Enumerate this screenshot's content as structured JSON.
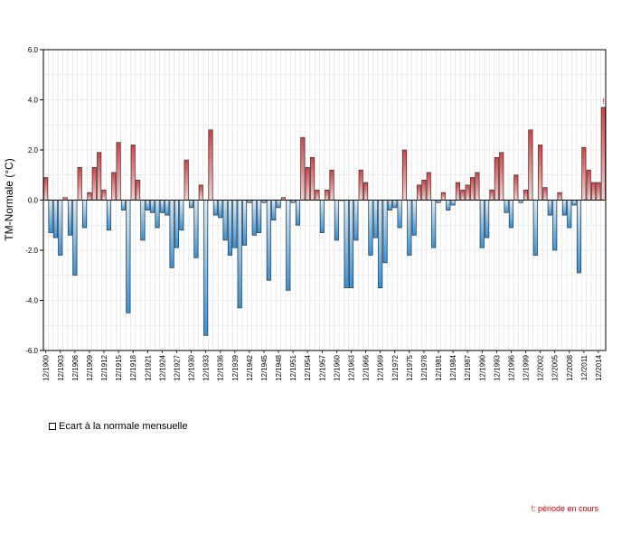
{
  "chart_data": {
    "type": "bar",
    "title": "",
    "ylabel": "TM-Normale (°C)",
    "xlabel": "",
    "ylim": [
      -6.0,
      6.0
    ],
    "yticks": [
      "6.0",
      "4.0",
      "2.0",
      "0.0",
      "-2.0",
      "-4.0",
      "-6.0"
    ],
    "ytick_values": [
      6,
      4,
      2,
      0,
      -2,
      -4,
      -6
    ],
    "grid": true,
    "legend_position": "bottom-left",
    "colors": {
      "positive": "#d94040",
      "positive_light": "#fbd0d0",
      "negative": "#2f93e0",
      "negative_light": "#d6efff"
    },
    "x_tick_labels": [
      "12/1900",
      "12/1903",
      "12/1906",
      "12/1909",
      "12/1912",
      "12/1915",
      "12/1918",
      "12/1921",
      "12/1924",
      "12/1927",
      "12/1930",
      "12/1933",
      "12/1936",
      "12/1939",
      "12/1942",
      "12/1945",
      "12/1948",
      "12/1951",
      "12/1954",
      "12/1957",
      "12/1960",
      "12/1963",
      "12/1966",
      "12/1969",
      "12/1972",
      "12/1975",
      "12/1978",
      "12/1981",
      "12/1984",
      "12/1987",
      "12/1990",
      "12/1993",
      "12/1996",
      "12/1999",
      "12/2002",
      "12/2005",
      "12/2008",
      "12/2011",
      "12/2014"
    ],
    "values": [
      0.9,
      -1.3,
      -1.5,
      -2.2,
      0.1,
      -1.4,
      -3.0,
      1.3,
      -1.1,
      0.3,
      1.3,
      1.9,
      0.4,
      -1.2,
      1.1,
      2.3,
      -0.4,
      -4.5,
      2.2,
      0.8,
      -1.6,
      -0.4,
      -0.5,
      -1.1,
      -0.5,
      -0.6,
      -2.7,
      -1.9,
      -1.2,
      1.6,
      -0.3,
      -2.3,
      0.6,
      -5.4,
      2.8,
      -0.6,
      -0.7,
      -1.6,
      -2.2,
      -1.9,
      -4.3,
      -1.8,
      -0.1,
      -1.4,
      -1.3,
      -0.1,
      -3.2,
      -0.8,
      -0.3,
      0.1,
      -3.6,
      -0.1,
      -1.0,
      2.5,
      1.3,
      1.7,
      0.4,
      -1.3,
      0.4,
      1.2,
      -1.6,
      0.0,
      -3.5,
      -3.5,
      -1.6,
      1.2,
      0.7,
      -2.2,
      -1.5,
      -3.5,
      -2.5,
      -0.4,
      -0.3,
      -1.1,
      2.0,
      -2.2,
      -1.4,
      0.6,
      0.8,
      1.1,
      -1.9,
      -0.1,
      0.3,
      -0.4,
      -0.2,
      0.7,
      0.4,
      0.6,
      0.9,
      1.1,
      -1.9,
      -1.5,
      0.4,
      1.7,
      1.9,
      -0.5,
      -1.1,
      1.0,
      -0.1,
      0.4,
      2.8,
      -2.2,
      2.2,
      0.5,
      -0.6,
      -2.0,
      0.3,
      -0.6,
      -1.1,
      -0.2,
      -2.9,
      2.1,
      1.2,
      0.7,
      0.7,
      3.7
    ],
    "current_period_marker": "!",
    "legend": [
      "Ecart à la normale mensuelle"
    ],
    "footnote": "!: période en cours"
  }
}
